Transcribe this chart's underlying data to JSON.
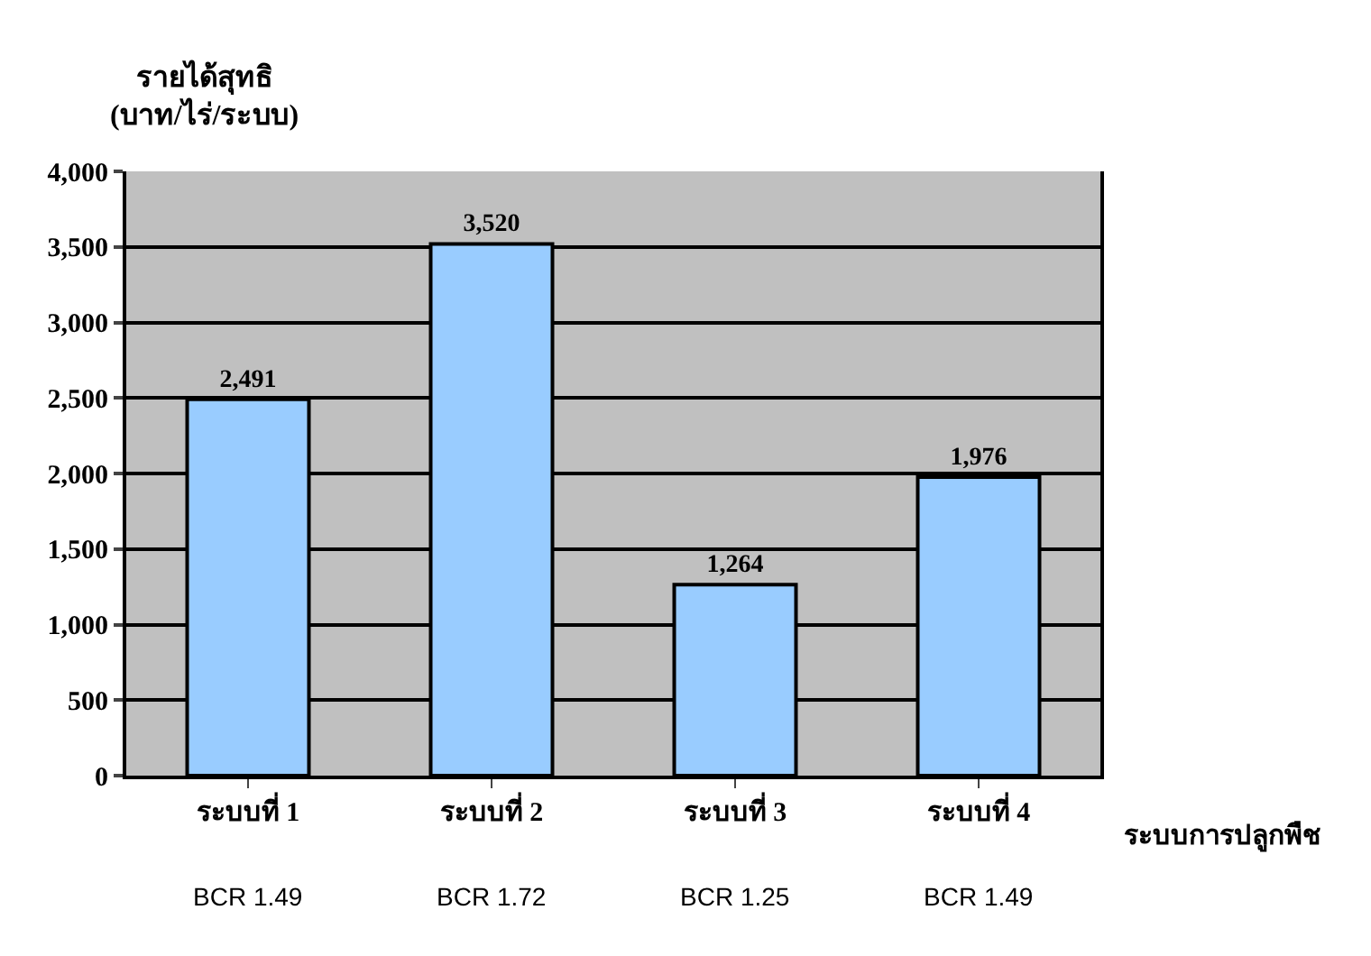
{
  "chart_data": {
    "type": "bar",
    "ylabel": "รายได้สุทธิ\n(บาท/ไร่/ระบบ)",
    "xlabel": "ระบบการปลูกพืช",
    "categories": [
      "ระบบที่ 1",
      "ระบบที่ 2",
      "ระบบที่ 3",
      "ระบบที่ 4"
    ],
    "values": [
      2491,
      3520,
      1264,
      1976
    ],
    "color": "#99ccff",
    "ylim": [
      0,
      4000
    ],
    "yticks": [
      {
        "value": 0,
        "label": "0"
      },
      {
        "value": 500,
        "label": "500"
      },
      {
        "value": 1000,
        "label": "1,000"
      },
      {
        "value": 1500,
        "label": "1,500"
      },
      {
        "value": 2000,
        "label": "2,000"
      },
      {
        "value": 2500,
        "label": "2,500"
      },
      {
        "value": 3000,
        "label": "3,000"
      },
      {
        "value": 3500,
        "label": "3,500"
      },
      {
        "value": 4000,
        "label": "4,000"
      }
    ],
    "value_labels": [
      "2,491",
      "3,520",
      "1,264",
      "1,976"
    ],
    "grid": "y",
    "annotations": [
      "BCR 1.49",
      "BCR 1.72",
      "BCR 1.25",
      "BCR 1.49"
    ]
  }
}
